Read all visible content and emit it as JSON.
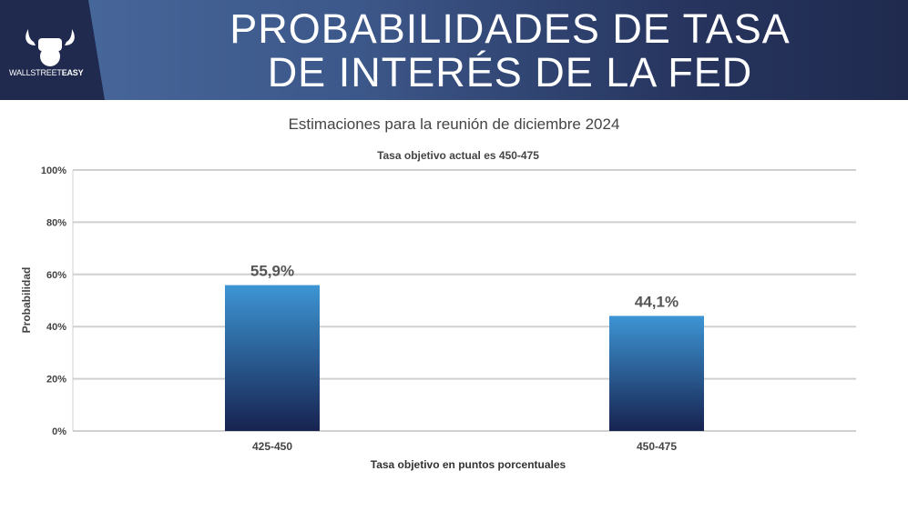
{
  "header": {
    "title_line1": "PROBABILIDADES DE TASA",
    "title_line2": "DE INTERÉS DE LA FED",
    "logo_text_light": "WALLSTREET",
    "logo_text_bold": "EASY"
  },
  "subtitle": "Estimaciones para la reunión de diciembre 2024",
  "colors": {
    "bar_top": "#3d95d4",
    "bar_bottom": "#172350",
    "header_dark": "#1f2a4e"
  },
  "chart_data": {
    "type": "bar",
    "title": "Tasa objetivo actual es 450-475",
    "xlabel": "Tasa objetivo en puntos porcentuales",
    "ylabel": "Probabilidad",
    "categories": [
      "425-450",
      "450-475"
    ],
    "values": [
      55.9,
      44.1
    ],
    "data_labels": [
      "55,9%",
      "44,1%"
    ],
    "ylim": [
      0,
      100
    ],
    "yticks": [
      0,
      20,
      40,
      60,
      80,
      100
    ],
    "ytick_labels": [
      "0%",
      "20%",
      "40%",
      "60%",
      "80%",
      "100%"
    ],
    "grid": true
  }
}
